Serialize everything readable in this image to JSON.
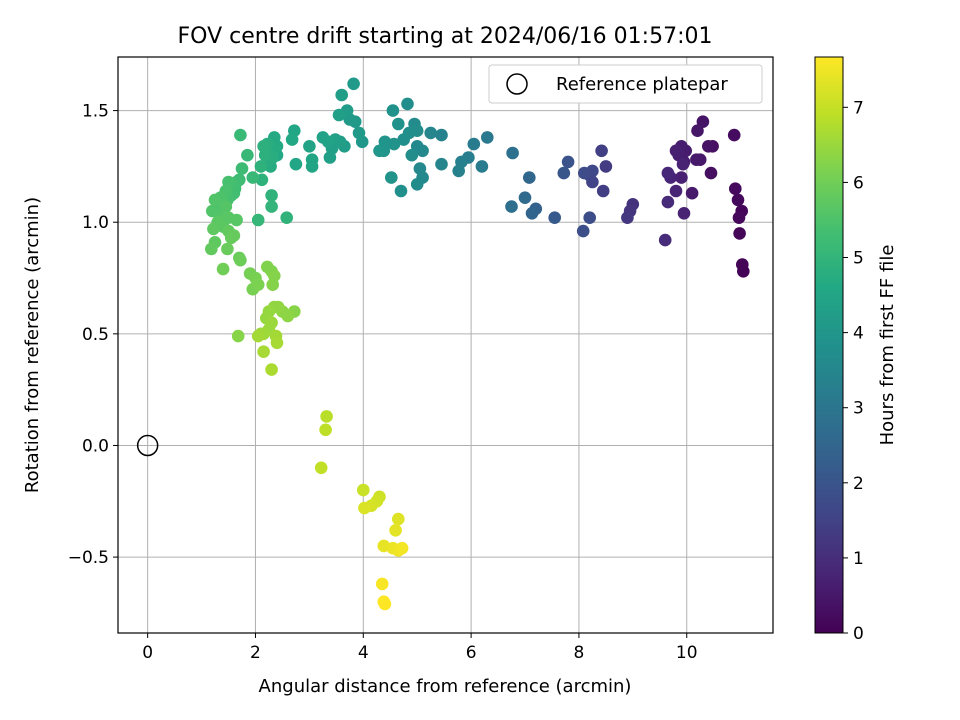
{
  "chart_data": {
    "type": "scatter",
    "title": "FOV centre drift starting at 2024/06/16 01:57:01",
    "xlabel": "Angular distance from reference (arcmin)",
    "ylabel": "Rotation from reference (arcmin)",
    "xlim": [
      -0.55,
      11.6
    ],
    "ylim": [
      -0.84,
      1.74
    ],
    "xticks": [
      0,
      2,
      4,
      6,
      8,
      10
    ],
    "xtick_labels": [
      "0",
      "2",
      "4",
      "6",
      "8",
      "10"
    ],
    "yticks": [
      -0.5,
      0.0,
      0.5,
      1.0,
      1.5
    ],
    "ytick_labels": [
      "−0.5",
      "0.0",
      "0.5",
      "1.0",
      "1.5"
    ],
    "grid": true,
    "legend": {
      "position": "top-right",
      "entries": [
        "Reference platepar"
      ]
    },
    "reference_point": {
      "x": 0.0,
      "y": 0.0
    },
    "colorbar": {
      "label": "Hours from first FF file",
      "colormap": "viridis",
      "range": [
        0,
        7.67
      ],
      "ticks": [
        0,
        1,
        2,
        3,
        4,
        5,
        6,
        7
      ],
      "tick_labels": [
        "0",
        "1",
        "2",
        "3",
        "4",
        "5",
        "6",
        "7"
      ]
    },
    "points": [
      {
        "x": 11.05,
        "y": 0.78,
        "c": 0.05
      },
      {
        "x": 11.03,
        "y": 0.81,
        "c": 0.08
      },
      {
        "x": 10.98,
        "y": 0.95,
        "c": 0.1
      },
      {
        "x": 11.02,
        "y": 1.05,
        "c": 0.12
      },
      {
        "x": 10.97,
        "y": 1.02,
        "c": 0.15
      },
      {
        "x": 10.95,
        "y": 1.1,
        "c": 0.18
      },
      {
        "x": 10.9,
        "y": 1.15,
        "c": 0.2
      },
      {
        "x": 10.88,
        "y": 1.39,
        "c": 0.25
      },
      {
        "x": 10.45,
        "y": 1.22,
        "c": 0.3
      },
      {
        "x": 10.48,
        "y": 1.34,
        "c": 0.35
      },
      {
        "x": 10.4,
        "y": 1.34,
        "c": 0.4
      },
      {
        "x": 10.3,
        "y": 1.45,
        "c": 0.42
      },
      {
        "x": 10.2,
        "y": 1.41,
        "c": 0.45
      },
      {
        "x": 10.25,
        "y": 1.28,
        "c": 0.5
      },
      {
        "x": 10.18,
        "y": 1.28,
        "c": 0.52
      },
      {
        "x": 10.1,
        "y": 1.13,
        "c": 0.55
      },
      {
        "x": 9.98,
        "y": 1.32,
        "c": 0.58
      },
      {
        "x": 9.95,
        "y": 1.27,
        "c": 0.6
      },
      {
        "x": 9.9,
        "y": 1.34,
        "c": 0.62
      },
      {
        "x": 9.85,
        "y": 1.3,
        "c": 0.65
      },
      {
        "x": 9.8,
        "y": 1.32,
        "c": 0.68
      },
      {
        "x": 9.9,
        "y": 1.2,
        "c": 0.7
      },
      {
        "x": 9.93,
        "y": 1.26,
        "c": 0.72
      },
      {
        "x": 9.95,
        "y": 1.04,
        "c": 0.75
      },
      {
        "x": 9.8,
        "y": 1.14,
        "c": 0.78
      },
      {
        "x": 9.7,
        "y": 1.2,
        "c": 0.8
      },
      {
        "x": 9.65,
        "y": 1.22,
        "c": 0.85
      },
      {
        "x": 9.65,
        "y": 1.09,
        "c": 0.9
      },
      {
        "x": 9.6,
        "y": 0.92,
        "c": 0.95
      },
      {
        "x": 9.0,
        "y": 1.08,
        "c": 1.1
      },
      {
        "x": 8.95,
        "y": 1.05,
        "c": 1.15
      },
      {
        "x": 8.9,
        "y": 1.02,
        "c": 1.2
      },
      {
        "x": 8.5,
        "y": 1.25,
        "c": 1.35
      },
      {
        "x": 8.45,
        "y": 1.14,
        "c": 1.4
      },
      {
        "x": 8.42,
        "y": 1.32,
        "c": 1.45
      },
      {
        "x": 8.25,
        "y": 1.18,
        "c": 1.55
      },
      {
        "x": 8.2,
        "y": 1.21,
        "c": 1.6
      },
      {
        "x": 8.25,
        "y": 1.23,
        "c": 1.65
      },
      {
        "x": 8.1,
        "y": 1.22,
        "c": 1.75
      },
      {
        "x": 8.2,
        "y": 1.02,
        "c": 1.8
      },
      {
        "x": 8.08,
        "y": 0.96,
        "c": 1.85
      },
      {
        "x": 7.8,
        "y": 1.27,
        "c": 2.0
      },
      {
        "x": 7.72,
        "y": 1.22,
        "c": 2.05
      },
      {
        "x": 7.55,
        "y": 1.02,
        "c": 2.15
      },
      {
        "x": 7.2,
        "y": 1.06,
        "c": 2.4
      },
      {
        "x": 7.13,
        "y": 1.04,
        "c": 2.5
      },
      {
        "x": 7.08,
        "y": 1.2,
        "c": 2.55
      },
      {
        "x": 7.0,
        "y": 1.11,
        "c": 2.65
      },
      {
        "x": 6.75,
        "y": 1.07,
        "c": 2.8
      },
      {
        "x": 6.77,
        "y": 1.31,
        "c": 2.85
      },
      {
        "x": 6.3,
        "y": 1.38,
        "c": 3.1
      },
      {
        "x": 6.2,
        "y": 1.25,
        "c": 3.15
      },
      {
        "x": 6.05,
        "y": 1.35,
        "c": 3.2
      },
      {
        "x": 5.95,
        "y": 1.29,
        "c": 3.25
      },
      {
        "x": 5.82,
        "y": 1.27,
        "c": 3.3
      },
      {
        "x": 5.77,
        "y": 1.23,
        "c": 3.35
      },
      {
        "x": 5.45,
        "y": 1.39,
        "c": 3.4
      },
      {
        "x": 5.45,
        "y": 1.26,
        "c": 3.45
      },
      {
        "x": 5.25,
        "y": 1.4,
        "c": 3.5
      },
      {
        "x": 5.1,
        "y": 1.32,
        "c": 3.55
      },
      {
        "x": 5.05,
        "y": 1.24,
        "c": 3.55
      },
      {
        "x": 5.1,
        "y": 1.2,
        "c": 3.6
      },
      {
        "x": 5.0,
        "y": 1.34,
        "c": 3.6
      },
      {
        "x": 5.0,
        "y": 1.17,
        "c": 3.65
      },
      {
        "x": 4.95,
        "y": 1.44,
        "c": 3.65
      },
      {
        "x": 5.0,
        "y": 1.41,
        "c": 3.7
      },
      {
        "x": 4.9,
        "y": 1.3,
        "c": 3.7
      },
      {
        "x": 4.85,
        "y": 1.4,
        "c": 3.75
      },
      {
        "x": 4.82,
        "y": 1.53,
        "c": 3.75
      },
      {
        "x": 4.75,
        "y": 1.37,
        "c": 3.8
      },
      {
        "x": 4.7,
        "y": 1.14,
        "c": 3.8
      },
      {
        "x": 4.65,
        "y": 1.44,
        "c": 3.85
      },
      {
        "x": 4.55,
        "y": 1.5,
        "c": 3.85
      },
      {
        "x": 4.57,
        "y": 1.35,
        "c": 3.9
      },
      {
        "x": 4.52,
        "y": 1.2,
        "c": 3.9
      },
      {
        "x": 4.4,
        "y": 1.36,
        "c": 3.95
      },
      {
        "x": 4.38,
        "y": 1.32,
        "c": 3.95
      },
      {
        "x": 4.3,
        "y": 1.32,
        "c": 4.0
      },
      {
        "x": 3.98,
        "y": 1.36,
        "c": 4.05
      },
      {
        "x": 3.92,
        "y": 1.4,
        "c": 4.1
      },
      {
        "x": 3.85,
        "y": 1.45,
        "c": 4.1
      },
      {
        "x": 3.82,
        "y": 1.62,
        "c": 4.15
      },
      {
        "x": 3.75,
        "y": 1.46,
        "c": 4.15
      },
      {
        "x": 3.7,
        "y": 1.5,
        "c": 4.2
      },
      {
        "x": 3.65,
        "y": 1.34,
        "c": 4.2
      },
      {
        "x": 3.6,
        "y": 1.57,
        "c": 4.25
      },
      {
        "x": 3.57,
        "y": 1.36,
        "c": 4.25
      },
      {
        "x": 3.55,
        "y": 1.48,
        "c": 4.3
      },
      {
        "x": 3.48,
        "y": 1.37,
        "c": 4.3
      },
      {
        "x": 3.42,
        "y": 1.33,
        "c": 4.35
      },
      {
        "x": 3.38,
        "y": 1.29,
        "c": 4.35
      },
      {
        "x": 3.35,
        "y": 1.36,
        "c": 4.4
      },
      {
        "x": 3.25,
        "y": 1.38,
        "c": 4.4
      },
      {
        "x": 3.0,
        "y": 1.34,
        "c": 4.45
      },
      {
        "x": 3.05,
        "y": 1.28,
        "c": 4.5
      },
      {
        "x": 3.05,
        "y": 1.25,
        "c": 4.5
      },
      {
        "x": 2.72,
        "y": 1.41,
        "c": 4.55
      },
      {
        "x": 2.75,
        "y": 1.26,
        "c": 4.55
      },
      {
        "x": 2.68,
        "y": 1.37,
        "c": 4.6
      },
      {
        "x": 2.4,
        "y": 1.3,
        "c": 4.6
      },
      {
        "x": 2.35,
        "y": 1.38,
        "c": 4.65
      },
      {
        "x": 2.4,
        "y": 1.34,
        "c": 4.65
      },
      {
        "x": 2.35,
        "y": 1.33,
        "c": 4.7
      },
      {
        "x": 2.28,
        "y": 1.25,
        "c": 4.7
      },
      {
        "x": 2.32,
        "y": 1.29,
        "c": 4.75
      },
      {
        "x": 2.25,
        "y": 1.28,
        "c": 4.75
      },
      {
        "x": 2.22,
        "y": 1.35,
        "c": 4.8
      },
      {
        "x": 2.2,
        "y": 1.32,
        "c": 4.8
      },
      {
        "x": 2.18,
        "y": 1.3,
        "c": 4.85
      },
      {
        "x": 2.15,
        "y": 1.34,
        "c": 4.85
      },
      {
        "x": 2.1,
        "y": 1.25,
        "c": 4.9
      },
      {
        "x": 2.12,
        "y": 1.19,
        "c": 4.9
      },
      {
        "x": 2.58,
        "y": 1.02,
        "c": 4.95
      },
      {
        "x": 2.3,
        "y": 1.12,
        "c": 4.95
      },
      {
        "x": 2.3,
        "y": 1.07,
        "c": 5.0
      },
      {
        "x": 2.05,
        "y": 1.01,
        "c": 5.05
      },
      {
        "x": 1.95,
        "y": 1.2,
        "c": 5.1
      },
      {
        "x": 1.85,
        "y": 1.3,
        "c": 5.1
      },
      {
        "x": 1.72,
        "y": 1.39,
        "c": 5.15
      },
      {
        "x": 1.75,
        "y": 1.24,
        "c": 5.2
      },
      {
        "x": 1.7,
        "y": 1.19,
        "c": 5.2
      },
      {
        "x": 1.65,
        "y": 1.18,
        "c": 5.25
      },
      {
        "x": 1.62,
        "y": 1.15,
        "c": 5.3
      },
      {
        "x": 1.6,
        "y": 1.13,
        "c": 5.3
      },
      {
        "x": 1.58,
        "y": 1.17,
        "c": 5.35
      },
      {
        "x": 1.55,
        "y": 1.12,
        "c": 5.35
      },
      {
        "x": 1.5,
        "y": 1.18,
        "c": 5.4
      },
      {
        "x": 1.48,
        "y": 1.1,
        "c": 5.4
      },
      {
        "x": 1.45,
        "y": 1.14,
        "c": 5.45
      },
      {
        "x": 1.4,
        "y": 1.09,
        "c": 5.45
      },
      {
        "x": 1.35,
        "y": 1.11,
        "c": 5.5
      },
      {
        "x": 1.3,
        "y": 1.06,
        "c": 5.5
      },
      {
        "x": 1.25,
        "y": 1.1,
        "c": 5.55
      },
      {
        "x": 1.2,
        "y": 1.05,
        "c": 5.55
      },
      {
        "x": 1.35,
        "y": 1.02,
        "c": 5.6
      },
      {
        "x": 1.45,
        "y": 1.07,
        "c": 5.6
      },
      {
        "x": 1.5,
        "y": 1.02,
        "c": 5.65
      },
      {
        "x": 1.65,
        "y": 1.01,
        "c": 5.65
      },
      {
        "x": 1.4,
        "y": 0.98,
        "c": 5.7
      },
      {
        "x": 1.3,
        "y": 1.0,
        "c": 5.7
      },
      {
        "x": 1.22,
        "y": 0.97,
        "c": 5.75
      },
      {
        "x": 1.25,
        "y": 0.91,
        "c": 5.75
      },
      {
        "x": 1.18,
        "y": 0.88,
        "c": 5.8
      },
      {
        "x": 1.5,
        "y": 0.96,
        "c": 5.8
      },
      {
        "x": 1.55,
        "y": 0.93,
        "c": 5.85
      },
      {
        "x": 1.6,
        "y": 0.94,
        "c": 5.85
      },
      {
        "x": 1.48,
        "y": 0.88,
        "c": 5.9
      },
      {
        "x": 1.7,
        "y": 0.84,
        "c": 5.9
      },
      {
        "x": 1.72,
        "y": 0.83,
        "c": 5.95
      },
      {
        "x": 1.4,
        "y": 0.79,
        "c": 6.0
      },
      {
        "x": 1.9,
        "y": 0.77,
        "c": 6.05
      },
      {
        "x": 2.0,
        "y": 0.75,
        "c": 6.1
      },
      {
        "x": 1.95,
        "y": 0.7,
        "c": 6.1
      },
      {
        "x": 2.05,
        "y": 0.72,
        "c": 6.15
      },
      {
        "x": 2.22,
        "y": 0.8,
        "c": 6.2
      },
      {
        "x": 2.3,
        "y": 0.78,
        "c": 6.2
      },
      {
        "x": 2.35,
        "y": 0.76,
        "c": 6.25
      },
      {
        "x": 2.32,
        "y": 0.72,
        "c": 6.25
      },
      {
        "x": 1.68,
        "y": 0.49,
        "c": 6.3
      },
      {
        "x": 2.72,
        "y": 0.6,
        "c": 6.3
      },
      {
        "x": 2.6,
        "y": 0.58,
        "c": 6.35
      },
      {
        "x": 2.5,
        "y": 0.6,
        "c": 6.35
      },
      {
        "x": 2.42,
        "y": 0.62,
        "c": 6.4
      },
      {
        "x": 2.35,
        "y": 0.62,
        "c": 6.4
      },
      {
        "x": 2.25,
        "y": 0.6,
        "c": 6.45
      },
      {
        "x": 2.2,
        "y": 0.57,
        "c": 6.45
      },
      {
        "x": 2.3,
        "y": 0.55,
        "c": 6.5
      },
      {
        "x": 2.25,
        "y": 0.52,
        "c": 6.5
      },
      {
        "x": 2.15,
        "y": 0.5,
        "c": 6.55
      },
      {
        "x": 2.1,
        "y": 0.5,
        "c": 6.55
      },
      {
        "x": 2.05,
        "y": 0.49,
        "c": 6.6
      },
      {
        "x": 2.38,
        "y": 0.49,
        "c": 6.6
      },
      {
        "x": 2.4,
        "y": 0.46,
        "c": 6.65
      },
      {
        "x": 2.15,
        "y": 0.42,
        "c": 6.65
      },
      {
        "x": 2.3,
        "y": 0.34,
        "c": 6.7
      },
      {
        "x": 3.32,
        "y": 0.13,
        "c": 6.85
      },
      {
        "x": 3.3,
        "y": 0.07,
        "c": 6.9
      },
      {
        "x": 3.22,
        "y": -0.1,
        "c": 6.95
      },
      {
        "x": 4.0,
        "y": -0.2,
        "c": 7.05
      },
      {
        "x": 4.3,
        "y": -0.23,
        "c": 7.1
      },
      {
        "x": 4.25,
        "y": -0.25,
        "c": 7.15
      },
      {
        "x": 4.15,
        "y": -0.27,
        "c": 7.2
      },
      {
        "x": 4.02,
        "y": -0.28,
        "c": 7.25
      },
      {
        "x": 4.65,
        "y": -0.33,
        "c": 7.3
      },
      {
        "x": 4.6,
        "y": -0.38,
        "c": 7.35
      },
      {
        "x": 4.38,
        "y": -0.45,
        "c": 7.4
      },
      {
        "x": 4.55,
        "y": -0.46,
        "c": 7.45
      },
      {
        "x": 4.65,
        "y": -0.47,
        "c": 7.5
      },
      {
        "x": 4.72,
        "y": -0.46,
        "c": 7.55
      },
      {
        "x": 4.35,
        "y": -0.62,
        "c": 7.6
      },
      {
        "x": 4.38,
        "y": -0.7,
        "c": 7.65
      },
      {
        "x": 4.4,
        "y": -0.71,
        "c": 7.67
      }
    ]
  }
}
